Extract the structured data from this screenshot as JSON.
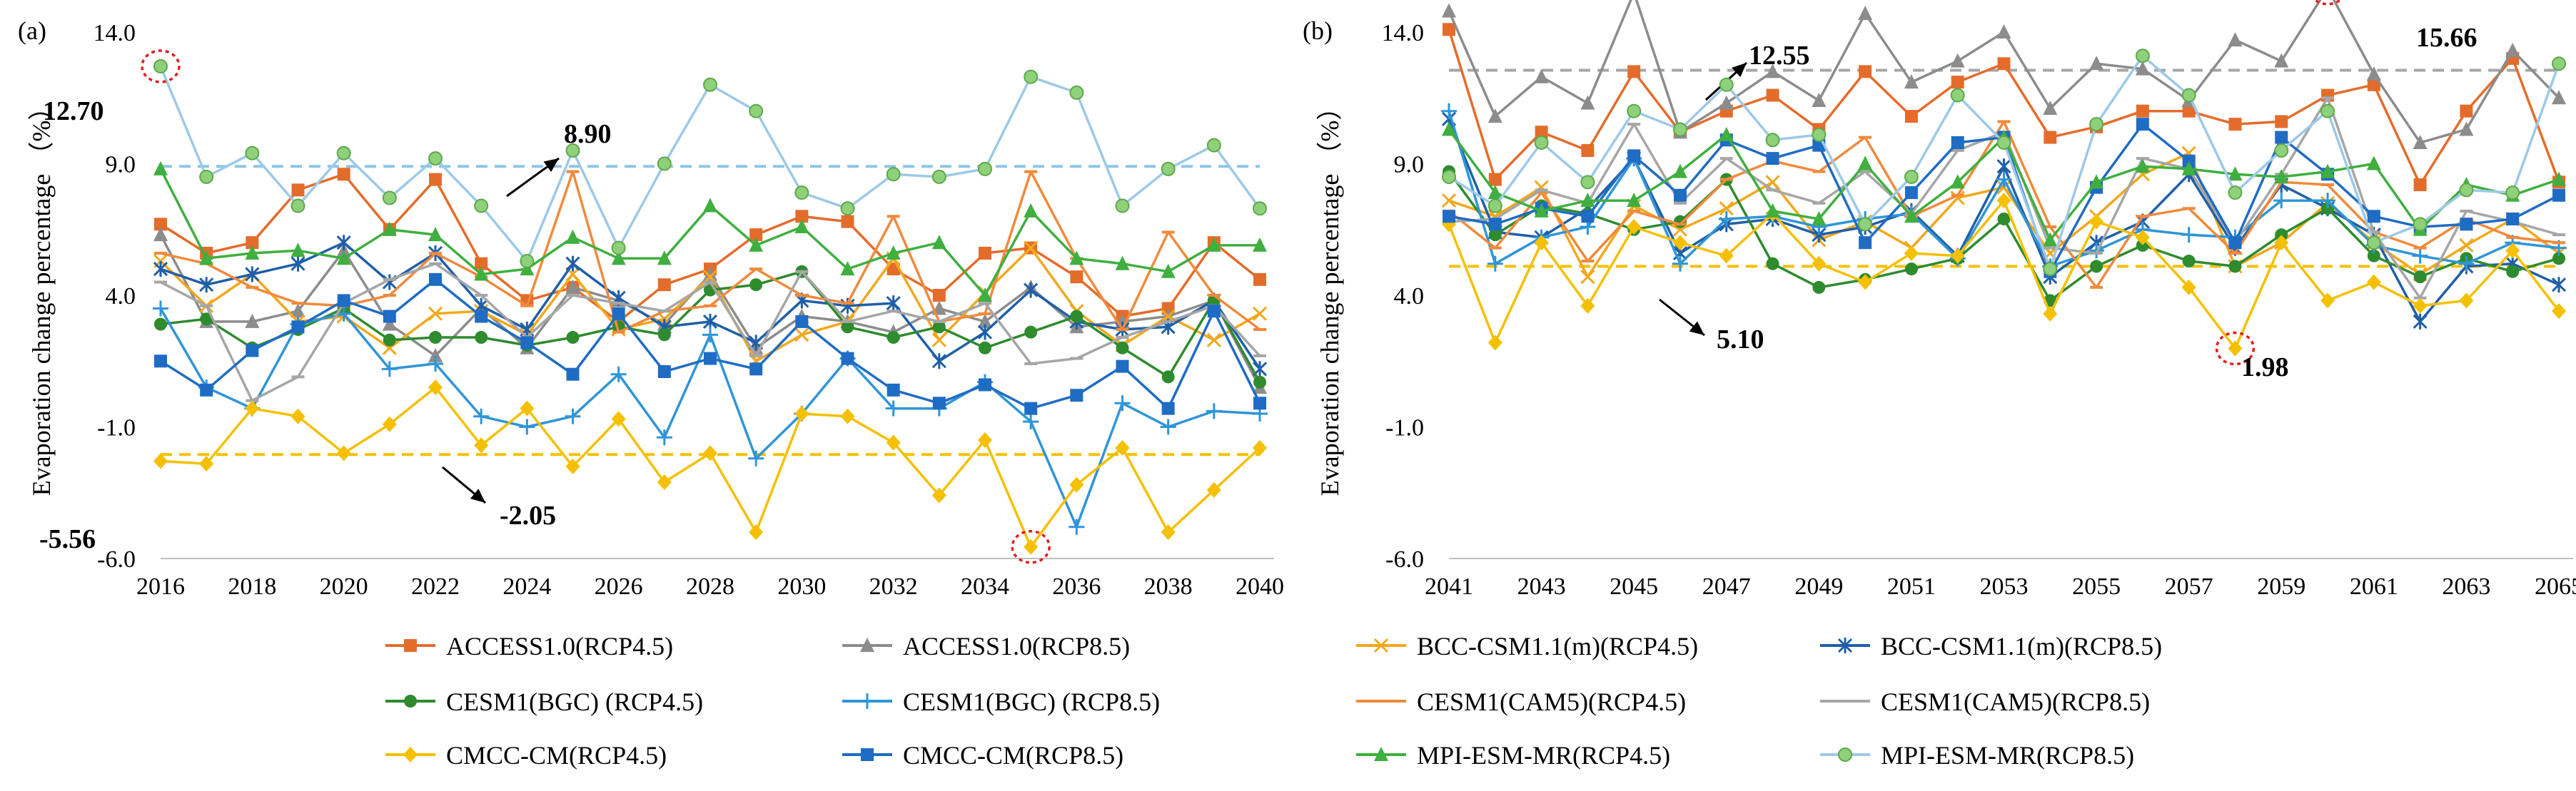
{
  "panels_meta": {
    "series_count": 12
  },
  "legend": [
    {
      "name": "ACCESS1.0(RCP4.5)",
      "color": "#E46C2B",
      "marker": "square"
    },
    {
      "name": "ACCESS1.0(RCP8.5)",
      "color": "#8C8C8C",
      "marker": "triangle"
    },
    {
      "name": "BCC-CSM1.1(m)(RCP4.5)",
      "color": "#F2A81D",
      "marker": "x"
    },
    {
      "name": "BCC-CSM1.1(m)(RCP8.5)",
      "color": "#1F5FA8",
      "marker": "star"
    },
    {
      "name": "CESM1(BGC) (RCP4.5)",
      "color": "#2E8B2E",
      "marker": "circle"
    },
    {
      "name": "CESM1(BGC) (RCP8.5)",
      "color": "#2F95D8",
      "marker": "plus"
    },
    {
      "name": "CESM1(CAM5)(RCP4.5)",
      "color": "#F08A3C",
      "marker": "dash"
    },
    {
      "name": "CESM1(CAM5)(RCP8.5)",
      "color": "#A6A6A6",
      "marker": "dash"
    },
    {
      "name": "CMCC-CM(RCP4.5)",
      "color": "#F5C000",
      "marker": "diamond"
    },
    {
      "name": "CMCC-CM(RCP8.5)",
      "color": "#1F6CC4",
      "marker": "square"
    },
    {
      "name": "MPI-ESM-MR(RCP4.5)",
      "color": "#3FAF3F",
      "marker": "triangle"
    },
    {
      "name": "MPI-ESM-MR(RCP8.5)",
      "color": "#9DC9E8",
      "marker": "circle-green"
    }
  ],
  "chart_data": [
    {
      "type": "line",
      "panel_label": "(a)",
      "ylabel": "Evaporation change percentage （%）",
      "ylim": [
        -6,
        14
      ],
      "yticks": [
        "-6.0",
        "-1.0",
        "4.0",
        "9.0",
        "14.0"
      ],
      "ytick_values": [
        -6,
        -1,
        4,
        9,
        14
      ],
      "x": [
        2016,
        2017,
        2018,
        2019,
        2020,
        2021,
        2022,
        2023,
        2024,
        2025,
        2026,
        2027,
        2028,
        2029,
        2030,
        2031,
        2032,
        2033,
        2034,
        2035,
        2036,
        2037,
        2038,
        2039,
        2040
      ],
      "xticks": [
        "2016",
        "2018",
        "2020",
        "2022",
        "2024",
        "2026",
        "2028",
        "2030",
        "2032",
        "2034",
        "2036",
        "2038",
        "2040"
      ],
      "series": [
        {
          "name": "ACCESS1.0(RCP4.5)",
          "values": [
            6.7,
            5.6,
            6.0,
            8.0,
            8.6,
            6.5,
            8.4,
            5.2,
            3.8,
            4.3,
            3.0,
            4.4,
            5.0,
            6.3,
            7.0,
            6.8,
            5.0,
            4.0,
            5.6,
            5.8,
            4.7,
            3.2,
            3.5,
            6.0,
            4.6
          ]
        },
        {
          "name": "ACCESS1.0(RCP8.5)",
          "values": [
            6.3,
            3.0,
            3.0,
            3.4,
            5.7,
            2.9,
            1.7,
            3.5,
            2.0,
            4.3,
            3.8,
            2.9,
            4.8,
            2.0,
            3.2,
            3.0,
            2.6,
            3.5,
            3.0,
            4.3,
            2.8,
            3.0,
            3.2,
            3.8,
            0.5
          ]
        },
        {
          "name": "BCC-CSM1.1(m)(RCP4.5)",
          "values": [
            5.3,
            3.6,
            4.8,
            3.0,
            3.2,
            2.0,
            3.3,
            3.4,
            2.5,
            4.8,
            2.7,
            3.1,
            4.7,
            1.5,
            2.5,
            3.0,
            5.4,
            2.3,
            4.1,
            5.8,
            3.4,
            2.1,
            3.2,
            2.3,
            3.3
          ]
        },
        {
          "name": "BCC-CSM1.1(m)(RCP8.5)",
          "values": [
            5.0,
            4.4,
            4.8,
            5.2,
            6.0,
            4.5,
            5.6,
            3.6,
            2.7,
            5.2,
            3.9,
            2.8,
            3.0,
            2.2,
            3.8,
            3.6,
            3.7,
            1.5,
            2.6,
            4.2,
            3.0,
            2.7,
            2.8,
            3.8,
            1.2
          ]
        },
        {
          "name": "CESM1(BGC) (RCP4.5)",
          "values": [
            2.9,
            3.1,
            2.0,
            2.7,
            3.5,
            2.3,
            2.4,
            2.4,
            2.1,
            2.4,
            2.8,
            2.5,
            4.2,
            4.4,
            4.9,
            2.8,
            2.4,
            2.8,
            2.0,
            2.6,
            3.2,
            2.0,
            0.9,
            3.8,
            0.7
          ]
        },
        {
          "name": "CESM1(BGC) (RCP8.5)",
          "values": [
            3.5,
            0.5,
            -0.3,
            2.9,
            3.3,
            1.2,
            1.4,
            -0.6,
            -1.0,
            -0.6,
            1.0,
            -1.4,
            2.5,
            -2.2,
            -0.5,
            1.6,
            -0.3,
            -0.3,
            0.7,
            -0.8,
            -4.8,
            -0.1,
            -1.0,
            -0.4,
            -0.5
          ]
        },
        {
          "name": "CESM1(CAM5)(RCP4.5)",
          "values": [
            5.6,
            5.2,
            4.3,
            3.7,
            3.6,
            4.0,
            5.6,
            4.7,
            3.6,
            8.7,
            2.6,
            3.4,
            3.6,
            5.0,
            4.0,
            3.7,
            7.0,
            3.0,
            3.3,
            8.7,
            5.4,
            2.7,
            6.4,
            4.0,
            2.7
          ]
        },
        {
          "name": "CESM1(CAM5)(RCP8.5)",
          "values": [
            4.5,
            3.6,
            0.0,
            0.9,
            3.7,
            4.6,
            5.2,
            4.0,
            2.4,
            4.0,
            3.7,
            3.4,
            4.5,
            1.7,
            4.9,
            3.0,
            3.4,
            3.0,
            3.7,
            1.4,
            1.6,
            2.4,
            3.0,
            3.6,
            1.7
          ]
        },
        {
          "name": "CMCC-CM(RCP4.5)",
          "values": [
            -2.3,
            -2.4,
            -0.3,
            -0.6,
            -2.0,
            -0.9,
            0.5,
            -1.7,
            -0.3,
            -2.5,
            -0.7,
            -3.1,
            -2.0,
            -5.0,
            -0.5,
            -0.6,
            -1.6,
            -3.6,
            -1.5,
            -5.56,
            -3.2,
            -1.8,
            -5.0,
            -3.4,
            -1.8
          ]
        },
        {
          "name": "CMCC-CM(RCP8.5)",
          "values": [
            1.5,
            0.4,
            1.9,
            2.8,
            3.8,
            3.2,
            4.6,
            3.2,
            2.2,
            1.0,
            3.3,
            1.1,
            1.6,
            1.2,
            3.0,
            1.6,
            0.4,
            -0.1,
            0.6,
            -0.3,
            0.2,
            1.3,
            -0.3,
            3.4,
            -0.1
          ]
        },
        {
          "name": "MPI-ESM-MR(RCP4.5)",
          "values": [
            8.8,
            5.4,
            5.6,
            5.7,
            5.4,
            6.5,
            6.3,
            4.8,
            5.0,
            6.2,
            5.4,
            5.4,
            7.4,
            5.9,
            6.6,
            5.0,
            5.6,
            6.0,
            4.0,
            7.2,
            5.4,
            5.2,
            4.9,
            5.9,
            5.9
          ]
        },
        {
          "name": "MPI-ESM-MR(RCP8.5)",
          "values": [
            12.7,
            8.5,
            9.4,
            7.4,
            9.4,
            7.7,
            9.2,
            7.4,
            5.3,
            9.5,
            5.8,
            9.0,
            12.0,
            11.0,
            7.9,
            7.3,
            8.6,
            8.5,
            8.8,
            12.3,
            11.7,
            7.4,
            8.8,
            9.7,
            7.3
          ]
        }
      ],
      "reference_lines": [
        {
          "label": "8.90",
          "value": 8.9,
          "color": "#8EC6E8"
        },
        {
          "label": "-2.05",
          "value": -2.05,
          "color": "#F5C000"
        }
      ],
      "annotations": [
        {
          "text": "12.70",
          "x": 2016,
          "y": 12.7
        },
        {
          "text": "-5.56",
          "x": 2035,
          "y": -5.56
        }
      ]
    },
    {
      "type": "line",
      "panel_label": "(b)",
      "ylabel": "Evaporation change percentage （%）",
      "ylim": [
        -6,
        14
      ],
      "yticks": [
        "-6.0",
        "-1.0",
        "4.0",
        "9.0",
        "14.0"
      ],
      "ytick_values": [
        -6,
        -1,
        4,
        9,
        14
      ],
      "x": [
        2041,
        2042,
        2043,
        2044,
        2045,
        2046,
        2047,
        2048,
        2049,
        2050,
        2051,
        2052,
        2053,
        2054,
        2055,
        2056,
        2057,
        2058,
        2059,
        2060,
        2061,
        2062,
        2063,
        2064,
        2065
      ],
      "xticks": [
        "2041",
        "2043",
        "2045",
        "2047",
        "2049",
        "2051",
        "2053",
        "2055",
        "2057",
        "2059",
        "2061",
        "2063",
        "2065"
      ],
      "series": [
        {
          "name": "ACCESS1.0(RCP4.5)",
          "values": [
            14.1,
            8.4,
            10.2,
            9.5,
            12.5,
            10.2,
            11.0,
            11.6,
            10.3,
            12.5,
            10.8,
            12.1,
            12.8,
            10.0,
            10.4,
            11.0,
            11.0,
            10.5,
            10.6,
            11.6,
            12.0,
            8.2,
            11.0,
            13.0,
            8.3
          ]
        },
        {
          "name": "ACCESS1.0(RCP8.5)",
          "values": [
            14.8,
            10.8,
            12.3,
            11.3,
            15.5,
            10.2,
            11.3,
            12.5,
            11.4,
            14.7,
            12.1,
            12.9,
            14.0,
            11.1,
            12.8,
            12.6,
            11.4,
            13.7,
            12.9,
            15.66,
            12.4,
            9.8,
            10.3,
            13.3,
            11.5
          ]
        },
        {
          "name": "BCC-CSM1.1(m)(RCP4.5)",
          "values": [
            7.6,
            7.0,
            8.1,
            4.7,
            7.4,
            6.5,
            7.3,
            8.3,
            6.1,
            6.8,
            5.8,
            7.7,
            8.1,
            5.6,
            7.0,
            8.6,
            9.4,
            5.1,
            6.0,
            7.5,
            6.0,
            4.8,
            5.9,
            6.9,
            5.6
          ]
        },
        {
          "name": "BCC-CSM1.1(m)(RCP8.5)",
          "values": [
            10.7,
            6.4,
            6.2,
            7.3,
            9.2,
            5.6,
            6.7,
            6.9,
            6.3,
            6.6,
            7.2,
            5.5,
            8.9,
            4.7,
            6.0,
            6.8,
            8.6,
            5.8,
            8.2,
            7.3,
            6.3,
            3.0,
            5.1,
            5.2,
            4.4
          ]
        },
        {
          "name": "CESM1(BGC) (RCP4.5)",
          "values": [
            8.7,
            6.3,
            7.4,
            7.1,
            6.5,
            6.8,
            8.4,
            5.2,
            4.3,
            4.6,
            5.0,
            5.4,
            6.9,
            3.8,
            5.1,
            5.9,
            5.3,
            5.1,
            6.3,
            7.3,
            5.5,
            4.7,
            5.4,
            4.9,
            5.4
          ]
        },
        {
          "name": "CESM1(BGC) (RCP8.5)",
          "values": [
            11.0,
            5.2,
            6.2,
            6.6,
            9.2,
            5.2,
            6.9,
            7.0,
            6.6,
            6.9,
            7.1,
            5.4,
            8.4,
            5.1,
            5.7,
            6.5,
            6.3,
            6.2,
            7.6,
            7.6,
            5.9,
            5.5,
            5.2,
            6.0,
            5.8
          ]
        },
        {
          "name": "CESM1(CAM5)(RCP4.5)",
          "values": [
            7.2,
            5.8,
            7.9,
            5.3,
            7.2,
            6.7,
            8.4,
            9.1,
            8.7,
            10.0,
            7.0,
            7.8,
            10.6,
            6.6,
            4.3,
            7.0,
            7.3,
            5.6,
            8.3,
            8.2,
            6.4,
            5.8,
            6.9,
            6.2,
            6.0
          ]
        },
        {
          "name": "CESM1(CAM5)(RCP8.5)",
          "values": [
            6.8,
            6.9,
            8.0,
            7.5,
            10.5,
            7.5,
            9.2,
            8.0,
            7.5,
            8.7,
            7.1,
            9.5,
            10.2,
            5.8,
            5.6,
            9.2,
            8.8,
            6.0,
            8.6,
            11.5,
            6.4,
            3.9,
            7.2,
            6.8,
            6.3
          ]
        },
        {
          "name": "CMCC-CM(RCP4.5)",
          "values": [
            6.7,
            2.2,
            6.0,
            3.6,
            6.6,
            6.0,
            5.5,
            7.1,
            5.2,
            4.5,
            5.6,
            5.5,
            7.6,
            3.3,
            6.8,
            6.2,
            4.3,
            1.98,
            6.0,
            3.8,
            4.5,
            3.6,
            3.8,
            5.7,
            3.4
          ]
        },
        {
          "name": "CMCC-CM(RCP8.5)",
          "values": [
            7.0,
            6.7,
            7.3,
            7.0,
            9.3,
            7.8,
            9.9,
            9.2,
            9.7,
            6.0,
            7.9,
            9.8,
            10.0,
            4.9,
            8.1,
            10.5,
            9.1,
            6.0,
            10.0,
            8.6,
            7.0,
            6.6,
            6.7,
            6.9,
            7.8
          ]
        },
        {
          "name": "MPI-ESM-MR(RCP4.5)",
          "values": [
            10.3,
            7.9,
            7.2,
            7.6,
            7.6,
            8.7,
            10.1,
            7.2,
            6.9,
            9.0,
            7.0,
            8.3,
            10.0,
            6.1,
            8.3,
            8.9,
            8.8,
            8.6,
            8.5,
            8.7,
            9.0,
            6.5,
            8.2,
            7.8,
            8.4
          ]
        },
        {
          "name": "MPI-ESM-MR(RCP8.5)",
          "values": [
            8.5,
            7.4,
            9.8,
            8.3,
            11.0,
            10.3,
            12.0,
            9.9,
            10.1,
            6.7,
            8.5,
            11.6,
            9.8,
            5.0,
            10.5,
            13.1,
            11.6,
            7.9,
            9.5,
            11.0,
            6.0,
            6.7,
            8.0,
            7.9,
            12.8
          ]
        }
      ],
      "reference_lines": [
        {
          "label": "12.55",
          "value": 12.55,
          "color": "#A6A6A6"
        },
        {
          "label": "5.10",
          "value": 5.1,
          "color": "#F5C000"
        }
      ],
      "annotations": [
        {
          "text": "15.66",
          "x": 2060,
          "y": 15.66
        },
        {
          "text": "1.98",
          "x": 2058,
          "y": 1.98
        }
      ]
    }
  ]
}
